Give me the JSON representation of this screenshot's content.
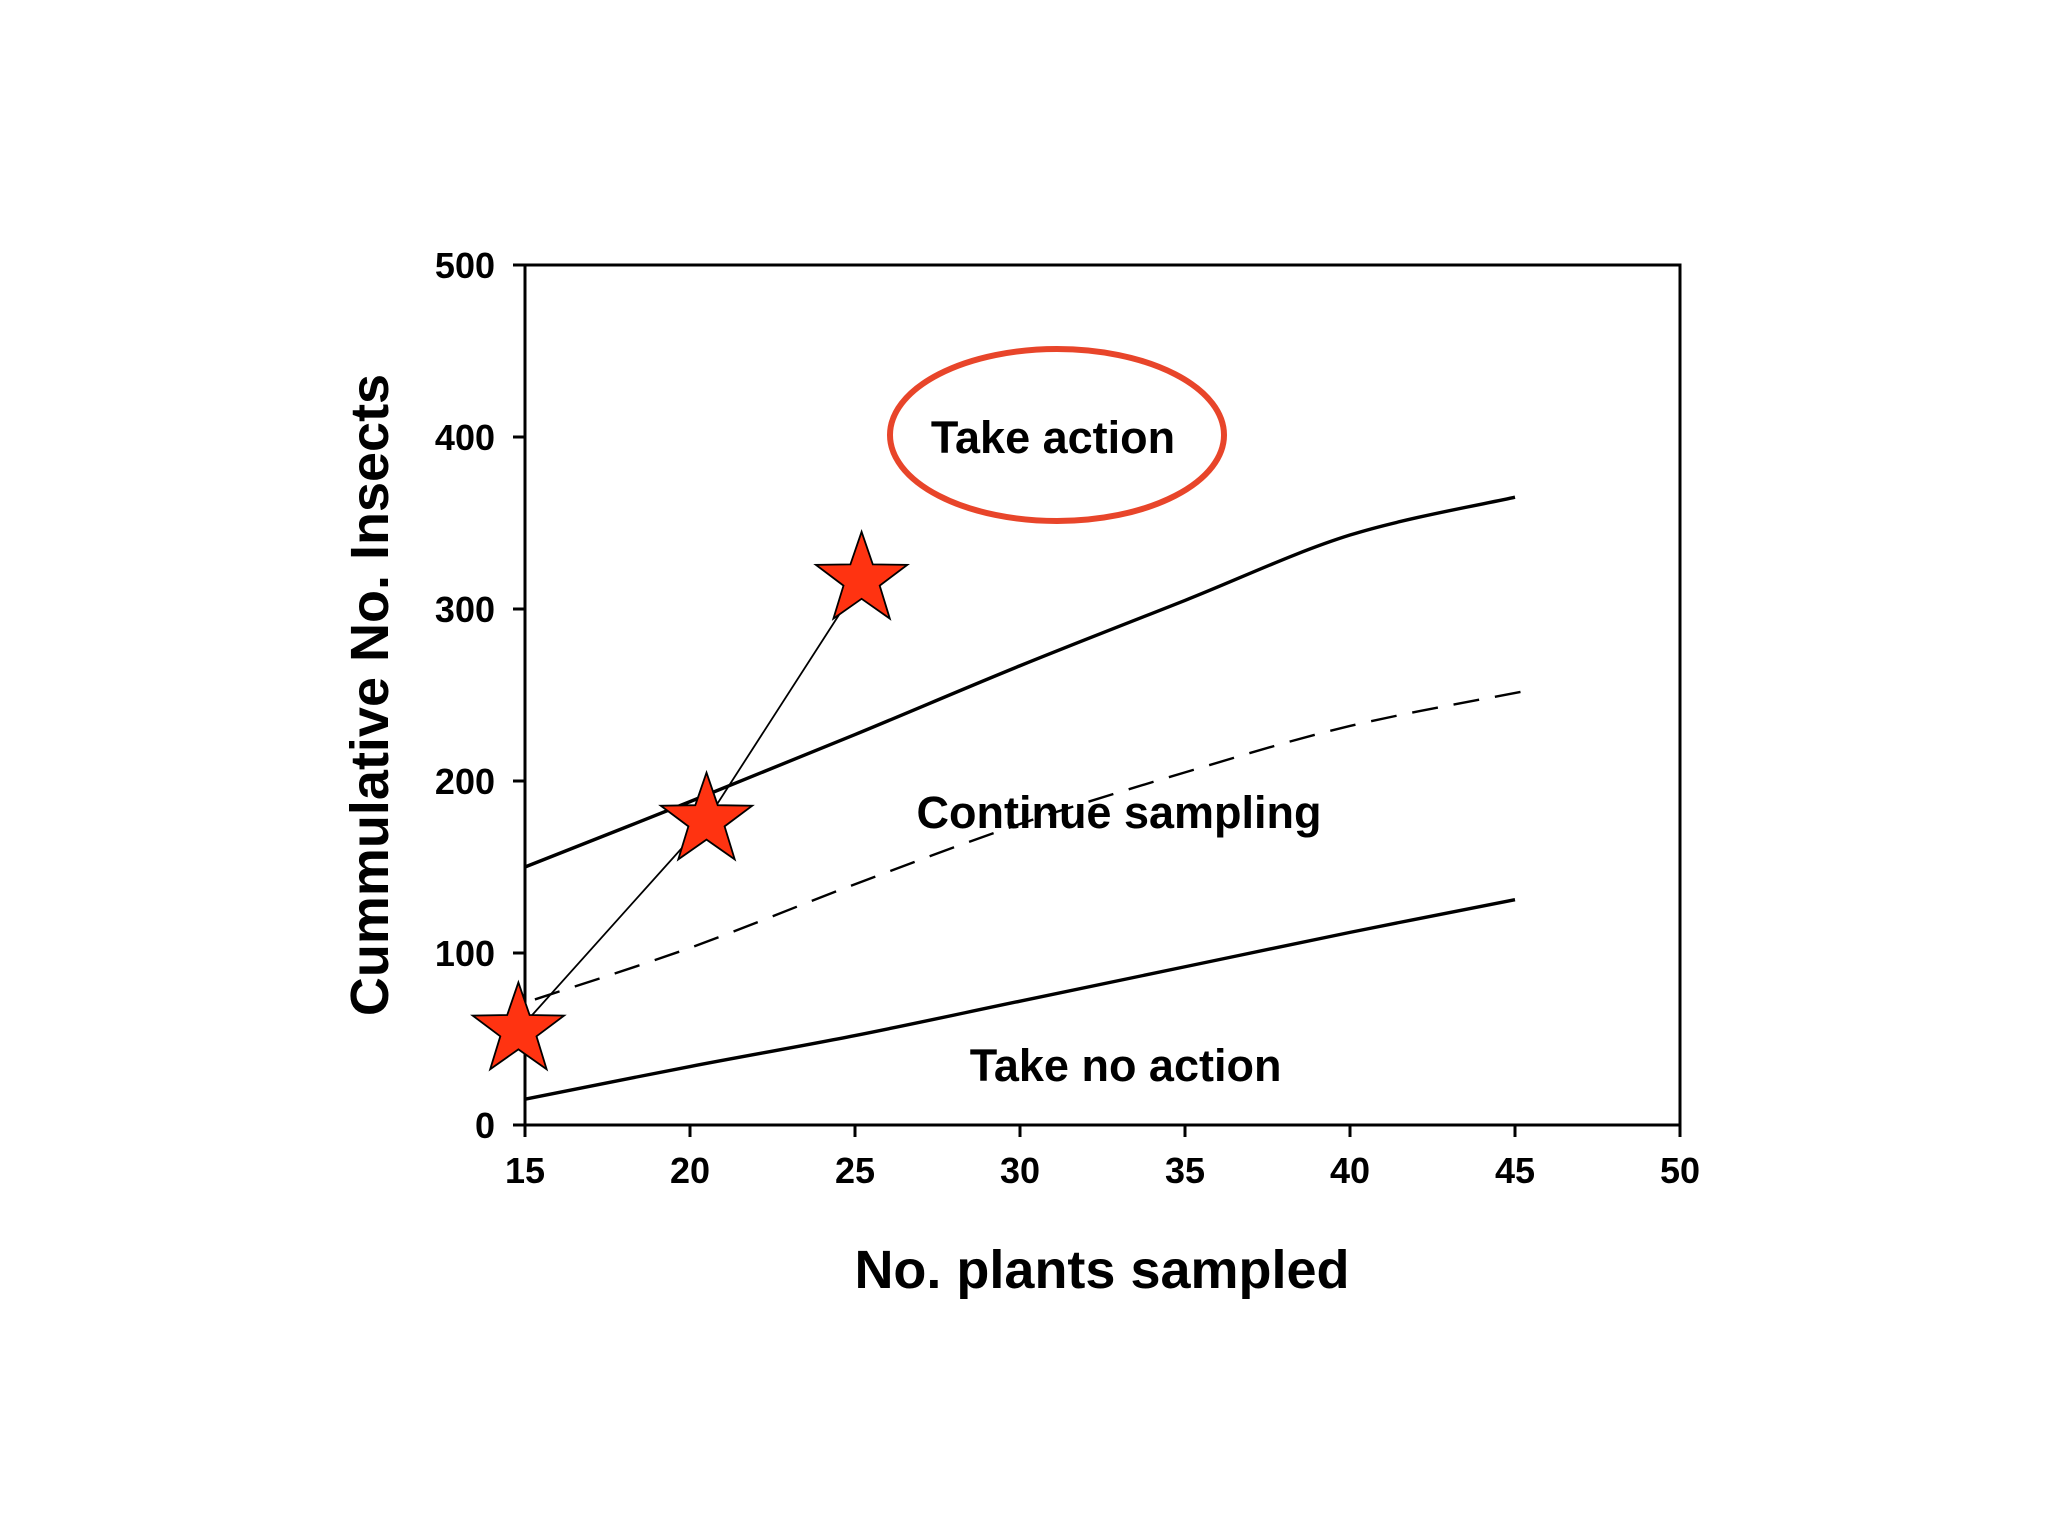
{
  "chart_data": {
    "type": "line",
    "title": "",
    "xlabel": "No. plants sampled",
    "ylabel": "Cummulative No. Insects",
    "xlim": [
      15,
      50
    ],
    "ylim": [
      0,
      500
    ],
    "x_ticks": [
      15,
      20,
      25,
      30,
      35,
      40,
      45,
      50
    ],
    "y_ticks": [
      0,
      100,
      200,
      300,
      400,
      500
    ],
    "grid": false,
    "legend": "none",
    "series": [
      {
        "style": "solid",
        "color": "#000000",
        "points": [
          [
            15,
            150
          ],
          [
            20,
            188
          ],
          [
            25,
            227
          ],
          [
            30,
            267
          ],
          [
            35,
            305
          ],
          [
            40,
            343
          ],
          [
            45,
            365
          ]
        ]
      },
      {
        "style": "dashed",
        "color": "#000000",
        "points": [
          [
            15.3,
            73
          ],
          [
            20,
            103
          ],
          [
            25,
            140
          ],
          [
            30,
            175
          ],
          [
            35,
            205
          ],
          [
            40,
            232
          ],
          [
            45.5,
            253
          ]
        ]
      },
      {
        "style": "solid",
        "color": "#000000",
        "points": [
          [
            15,
            15
          ],
          [
            20,
            34
          ],
          [
            25,
            52
          ],
          [
            30,
            72
          ],
          [
            35,
            92
          ],
          [
            40,
            112
          ],
          [
            45,
            131
          ]
        ]
      },
      {
        "style": "thin-solid",
        "color": "#000000",
        "marker": "star",
        "marker_color": "#ff3311",
        "points": [
          [
            14.8,
            55
          ],
          [
            20.5,
            177
          ],
          [
            25.2,
            317
          ]
        ]
      }
    ],
    "annotations": [
      {
        "text": "Take action",
        "x": 31.0,
        "y": 400,
        "circled": true,
        "circle_color": "#e8452a"
      },
      {
        "text": "Continue sampling",
        "x": 33.0,
        "y": 182,
        "circled": false
      },
      {
        "text": "Take no action",
        "x": 33.2,
        "y": 35,
        "circled": false
      }
    ]
  }
}
